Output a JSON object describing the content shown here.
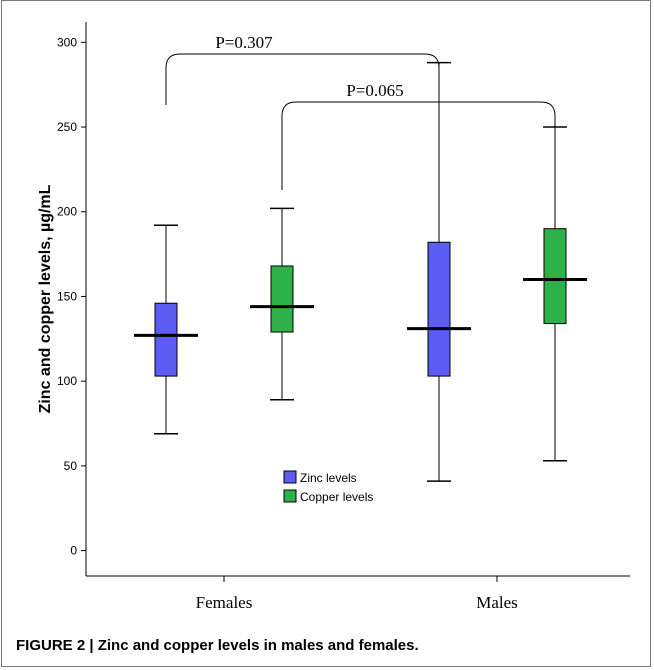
{
  "caption": "FIGURE 2 | Zinc and copper levels in males and females.",
  "chart_data": {
    "type": "boxplot",
    "ylabel": "Zinc and copper levels, µg/mL",
    "ylim": [
      -15,
      312
    ],
    "yticks": [
      0,
      50,
      100,
      150,
      200,
      250,
      300
    ],
    "categories": [
      "Females",
      "Males"
    ],
    "series": [
      {
        "name": "Zinc levels",
        "color": "#5c5cf5",
        "boxes": [
          {
            "category": "Females",
            "min": 69,
            "q1": 103,
            "median": 127,
            "q3": 146,
            "max": 192
          },
          {
            "category": "Males",
            "min": 41,
            "q1": 103,
            "median": 131,
            "q3": 182,
            "max": 288
          }
        ]
      },
      {
        "name": "Copper levels",
        "color": "#2fb14a",
        "boxes": [
          {
            "category": "Females",
            "min": 89,
            "q1": 129,
            "median": 144,
            "q3": 168,
            "max": 202
          },
          {
            "category": "Males",
            "min": 53,
            "q1": 134,
            "median": 160,
            "q3": 190,
            "max": 250
          }
        ]
      }
    ],
    "annotations": [
      {
        "text": "P=0.307",
        "from": "Females-Zinc",
        "to": "Males-Zinc"
      },
      {
        "text": "P=0.065",
        "from": "Females-Copper",
        "to": "Males-Copper"
      }
    ],
    "legend_position": "bottom-center"
  }
}
